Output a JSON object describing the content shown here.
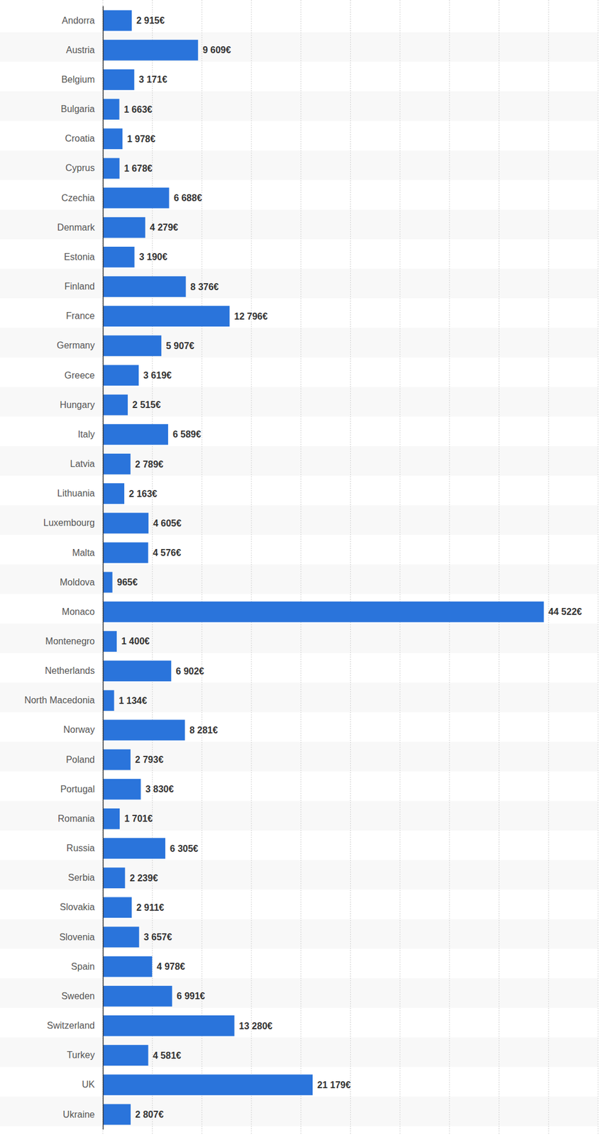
{
  "chart_data": {
    "type": "bar",
    "orientation": "horizontal",
    "categories": [
      "Andorra",
      "Austria",
      "Belgium",
      "Bulgaria",
      "Croatia",
      "Cyprus",
      "Czechia",
      "Denmark",
      "Estonia",
      "Finland",
      "France",
      "Germany",
      "Greece",
      "Hungary",
      "Italy",
      "Latvia",
      "Lithuania",
      "Luxembourg",
      "Malta",
      "Moldova",
      "Monaco",
      "Montenegro",
      "Netherlands",
      "North Macedonia",
      "Norway",
      "Poland",
      "Portugal",
      "Romania",
      "Russia",
      "Serbia",
      "Slovakia",
      "Slovenia",
      "Spain",
      "Sweden",
      "Switzerland",
      "Turkey",
      "UK",
      "Ukraine"
    ],
    "values": [
      2915,
      9609,
      3171,
      1663,
      1978,
      1678,
      6688,
      4279,
      3190,
      8376,
      12796,
      5907,
      3619,
      2515,
      6589,
      2789,
      2163,
      4605,
      4576,
      965,
      44522,
      1400,
      6902,
      1134,
      8281,
      2793,
      3830,
      1701,
      6305,
      2239,
      2911,
      3657,
      4978,
      6991,
      13280,
      4581,
      21179,
      2807
    ],
    "value_labels": [
      "2 915€",
      "9 609€",
      "3 171€",
      "1 663€",
      "1 978€",
      "1 678€",
      "6 688€",
      "4 279€",
      "3 190€",
      "8 376€",
      "12 796€",
      "5 907€",
      "3 619€",
      "2 515€",
      "6 589€",
      "2 789€",
      "2 163€",
      "4 605€",
      "4 576€",
      "965€",
      "44 522€",
      "1 400€",
      "6 902€",
      "1 134€",
      "8 281€",
      "2 793€",
      "3 830€",
      "1 701€",
      "6 305€",
      "2 239€",
      "2 911€",
      "3 657€",
      "4 978€",
      "6 991€",
      "13 280€",
      "4 581€",
      "21 179€",
      "2 807€"
    ],
    "color": "#2a74db",
    "xlim": [
      0,
      50000
    ],
    "xticks": [
      0,
      5000,
      10000,
      15000,
      20000,
      25000,
      30000,
      35000,
      40000,
      45000,
      50000
    ],
    "grid": true,
    "data_labels": true,
    "tick_labels": "y"
  }
}
